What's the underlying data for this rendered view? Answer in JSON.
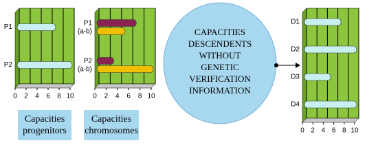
{
  "chart_data": [
    {
      "type": "hbar",
      "title": "Capacities progenitors",
      "categories": [
        "P1",
        "P2"
      ],
      "series": [
        {
          "color": "#c8f0f0",
          "values": [
            7,
            10
          ]
        }
      ],
      "xlim": [
        0,
        10
      ],
      "xticks": [
        0,
        2,
        4,
        6,
        8,
        10
      ],
      "grid": true,
      "background": "#8cc63f"
    },
    {
      "type": "hbar",
      "title": "Capacities chromosomes",
      "categories": [
        "P1 (a-b)",
        "P2 (a-b)"
      ],
      "series": [
        {
          "color": "#8b2252",
          "values": [
            7,
            3
          ]
        },
        {
          "color": "#f0c000",
          "values": [
            5,
            10
          ]
        }
      ],
      "xlim": [
        0,
        10
      ],
      "xticks": [
        0,
        2,
        4,
        6,
        8,
        10
      ],
      "grid": true,
      "background": "#8cc63f"
    },
    {
      "type": "hbar",
      "categories": [
        "D1",
        "D2",
        "D3",
        "D4"
      ],
      "series": [
        {
          "color": "#c8f0f0",
          "values": [
            7,
            10,
            5,
            10
          ]
        }
      ],
      "xlim": [
        0,
        10
      ],
      "xticks": [
        0,
        2,
        4,
        6,
        8,
        10
      ],
      "grid": true,
      "background": "#8cc63f"
    }
  ],
  "circle": {
    "lines": [
      "CAPACITIES",
      "DESCENDENTS",
      "WITHOUT",
      "GENETIC",
      "VERIFICATION",
      "INFORMATION"
    ]
  }
}
